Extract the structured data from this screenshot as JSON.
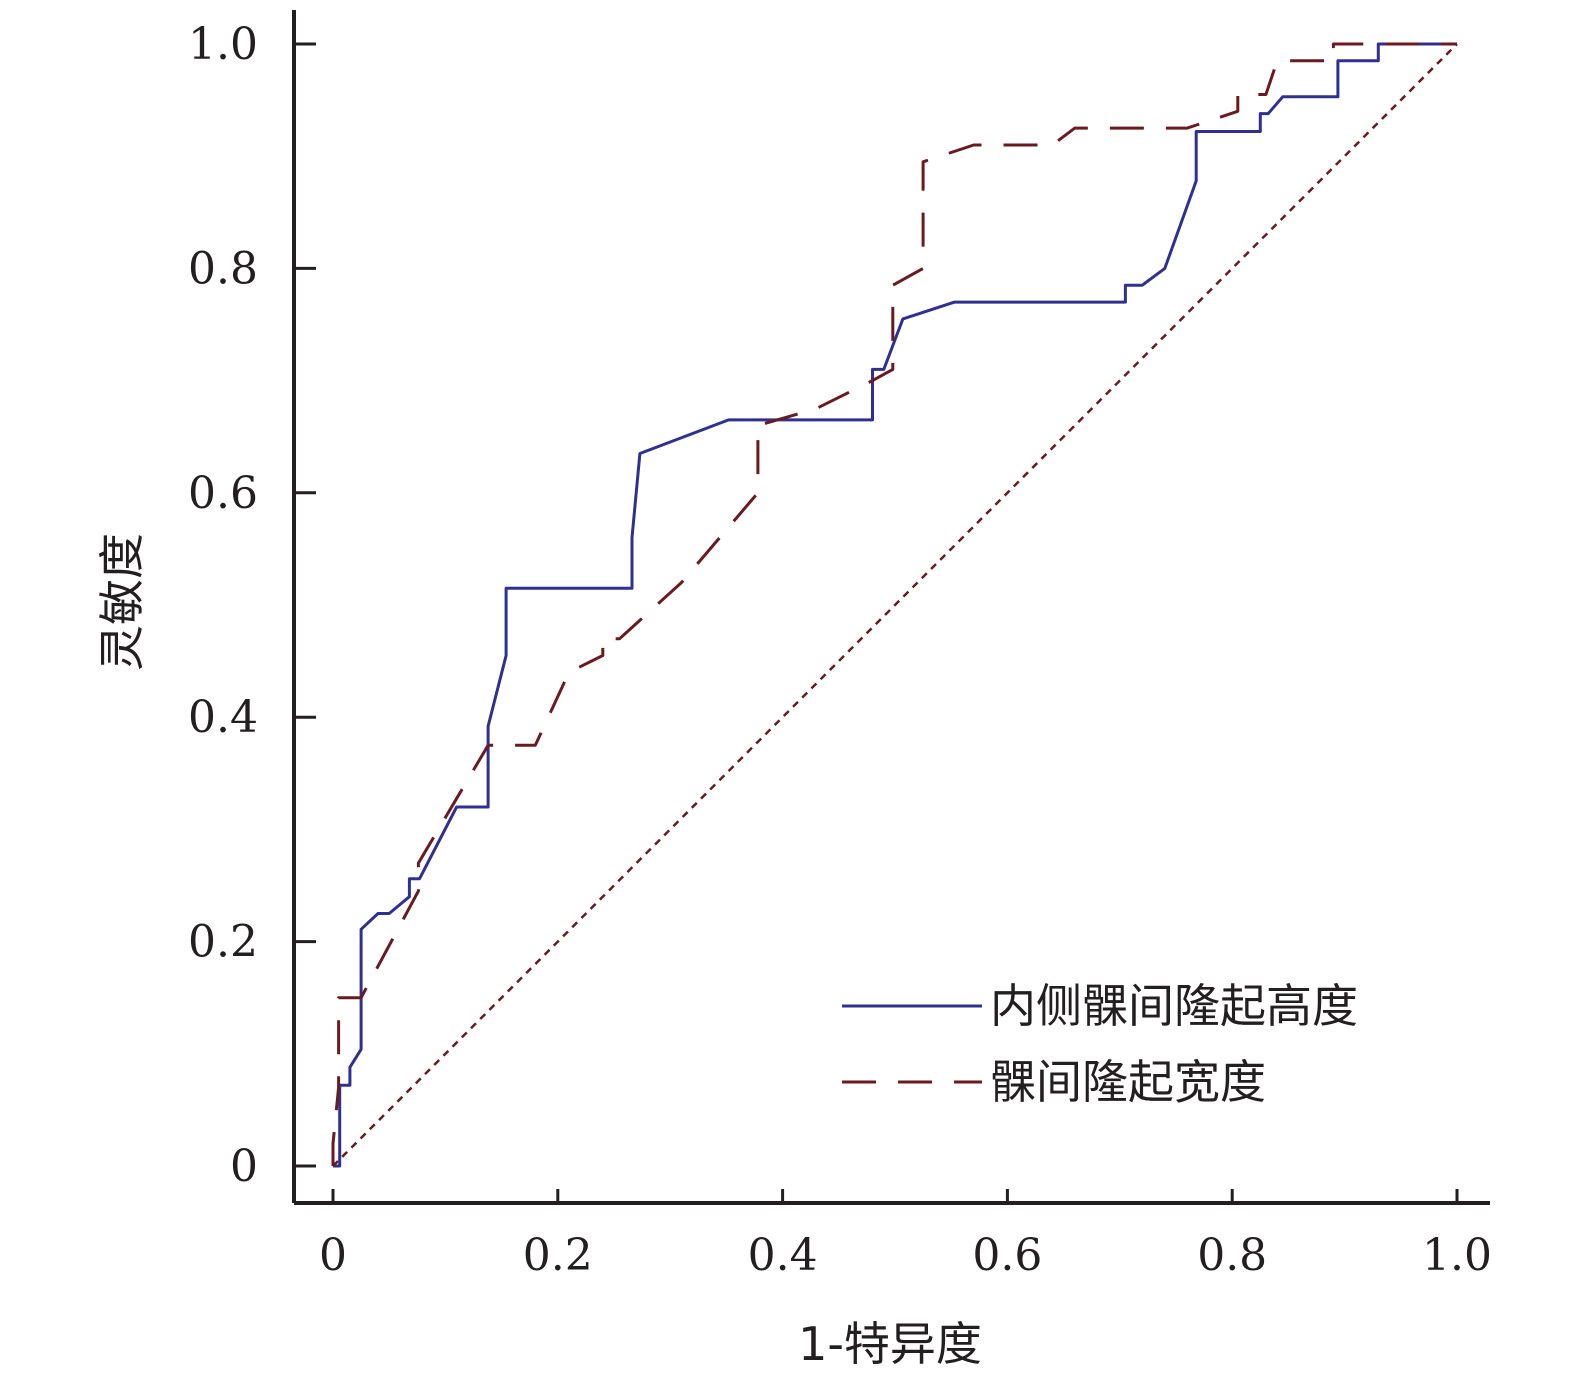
{
  "chart_data": {
    "type": "line",
    "title": "",
    "xlabel": "1-特异度",
    "ylabel": "灵敏度",
    "xlim": [
      0,
      1.0
    ],
    "ylim": [
      0,
      1.0
    ],
    "x_ticks": [
      0,
      0.2,
      0.4,
      0.6,
      0.8,
      1.0
    ],
    "x_tick_labels": [
      "0",
      "0.2",
      "0.4",
      "0.6",
      "0.8",
      "1.0"
    ],
    "y_ticks": [
      0,
      0.2,
      0.4,
      0.6,
      0.8,
      1.0
    ],
    "y_tick_labels": [
      "0",
      "0.2",
      "0.4",
      "0.6",
      "0.8",
      "1.0"
    ],
    "grid": false,
    "legend_position": "bottom-right",
    "series": [
      {
        "name": "内侧髁间隆起高度",
        "style": "solid",
        "color": "#2e3192",
        "points": [
          [
            0,
            0
          ],
          [
            0.006,
            0
          ],
          [
            0.006,
            0.072
          ],
          [
            0.015,
            0.072
          ],
          [
            0.015,
            0.088
          ],
          [
            0.025,
            0.104
          ],
          [
            0.025,
            0.211
          ],
          [
            0.04,
            0.225
          ],
          [
            0.05,
            0.225
          ],
          [
            0.068,
            0.24
          ],
          [
            0.068,
            0.256
          ],
          [
            0.077,
            0.256
          ],
          [
            0.11,
            0.32
          ],
          [
            0.138,
            0.32
          ],
          [
            0.138,
            0.392
          ],
          [
            0.154,
            0.455
          ],
          [
            0.154,
            0.515
          ],
          [
            0.266,
            0.515
          ],
          [
            0.266,
            0.56
          ],
          [
            0.273,
            0.635
          ],
          [
            0.352,
            0.665
          ],
          [
            0.48,
            0.665
          ],
          [
            0.48,
            0.71
          ],
          [
            0.49,
            0.71
          ],
          [
            0.507,
            0.755
          ],
          [
            0.553,
            0.77
          ],
          [
            0.705,
            0.77
          ],
          [
            0.705,
            0.785
          ],
          [
            0.72,
            0.785
          ],
          [
            0.74,
            0.8
          ],
          [
            0.768,
            0.878
          ],
          [
            0.768,
            0.922
          ],
          [
            0.825,
            0.922
          ],
          [
            0.825,
            0.938
          ],
          [
            0.832,
            0.938
          ],
          [
            0.845,
            0.953
          ],
          [
            0.894,
            0.953
          ],
          [
            0.894,
            0.985
          ],
          [
            0.93,
            0.985
          ],
          [
            0.93,
            1.0
          ],
          [
            1.0,
            1.0
          ]
        ]
      },
      {
        "name": "髁间隆起宽度",
        "style": "dashed",
        "color": "#6b1a1f",
        "points": [
          [
            0,
            0
          ],
          [
            0,
            0.02
          ],
          [
            0.005,
            0.07
          ],
          [
            0.005,
            0.15
          ],
          [
            0.025,
            0.15
          ],
          [
            0.076,
            0.245
          ],
          [
            0.076,
            0.27
          ],
          [
            0.138,
            0.375
          ],
          [
            0.18,
            0.375
          ],
          [
            0.21,
            0.44
          ],
          [
            0.24,
            0.455
          ],
          [
            0.24,
            0.47
          ],
          [
            0.255,
            0.47
          ],
          [
            0.31,
            0.52
          ],
          [
            0.378,
            0.6
          ],
          [
            0.378,
            0.66
          ],
          [
            0.43,
            0.675
          ],
          [
            0.48,
            0.7
          ],
          [
            0.498,
            0.71
          ],
          [
            0.498,
            0.785
          ],
          [
            0.525,
            0.8
          ],
          [
            0.525,
            0.895
          ],
          [
            0.57,
            0.91
          ],
          [
            0.64,
            0.91
          ],
          [
            0.66,
            0.925
          ],
          [
            0.76,
            0.925
          ],
          [
            0.805,
            0.94
          ],
          [
            0.805,
            0.955
          ],
          [
            0.83,
            0.955
          ],
          [
            0.84,
            0.985
          ],
          [
            0.89,
            0.985
          ],
          [
            0.89,
            1.0
          ],
          [
            1.0,
            1.0
          ]
        ]
      },
      {
        "name": "",
        "style": "dotted",
        "color": "#6b1a1f",
        "points": [
          [
            0,
            0
          ],
          [
            1.0,
            1.0
          ]
        ]
      }
    ]
  }
}
